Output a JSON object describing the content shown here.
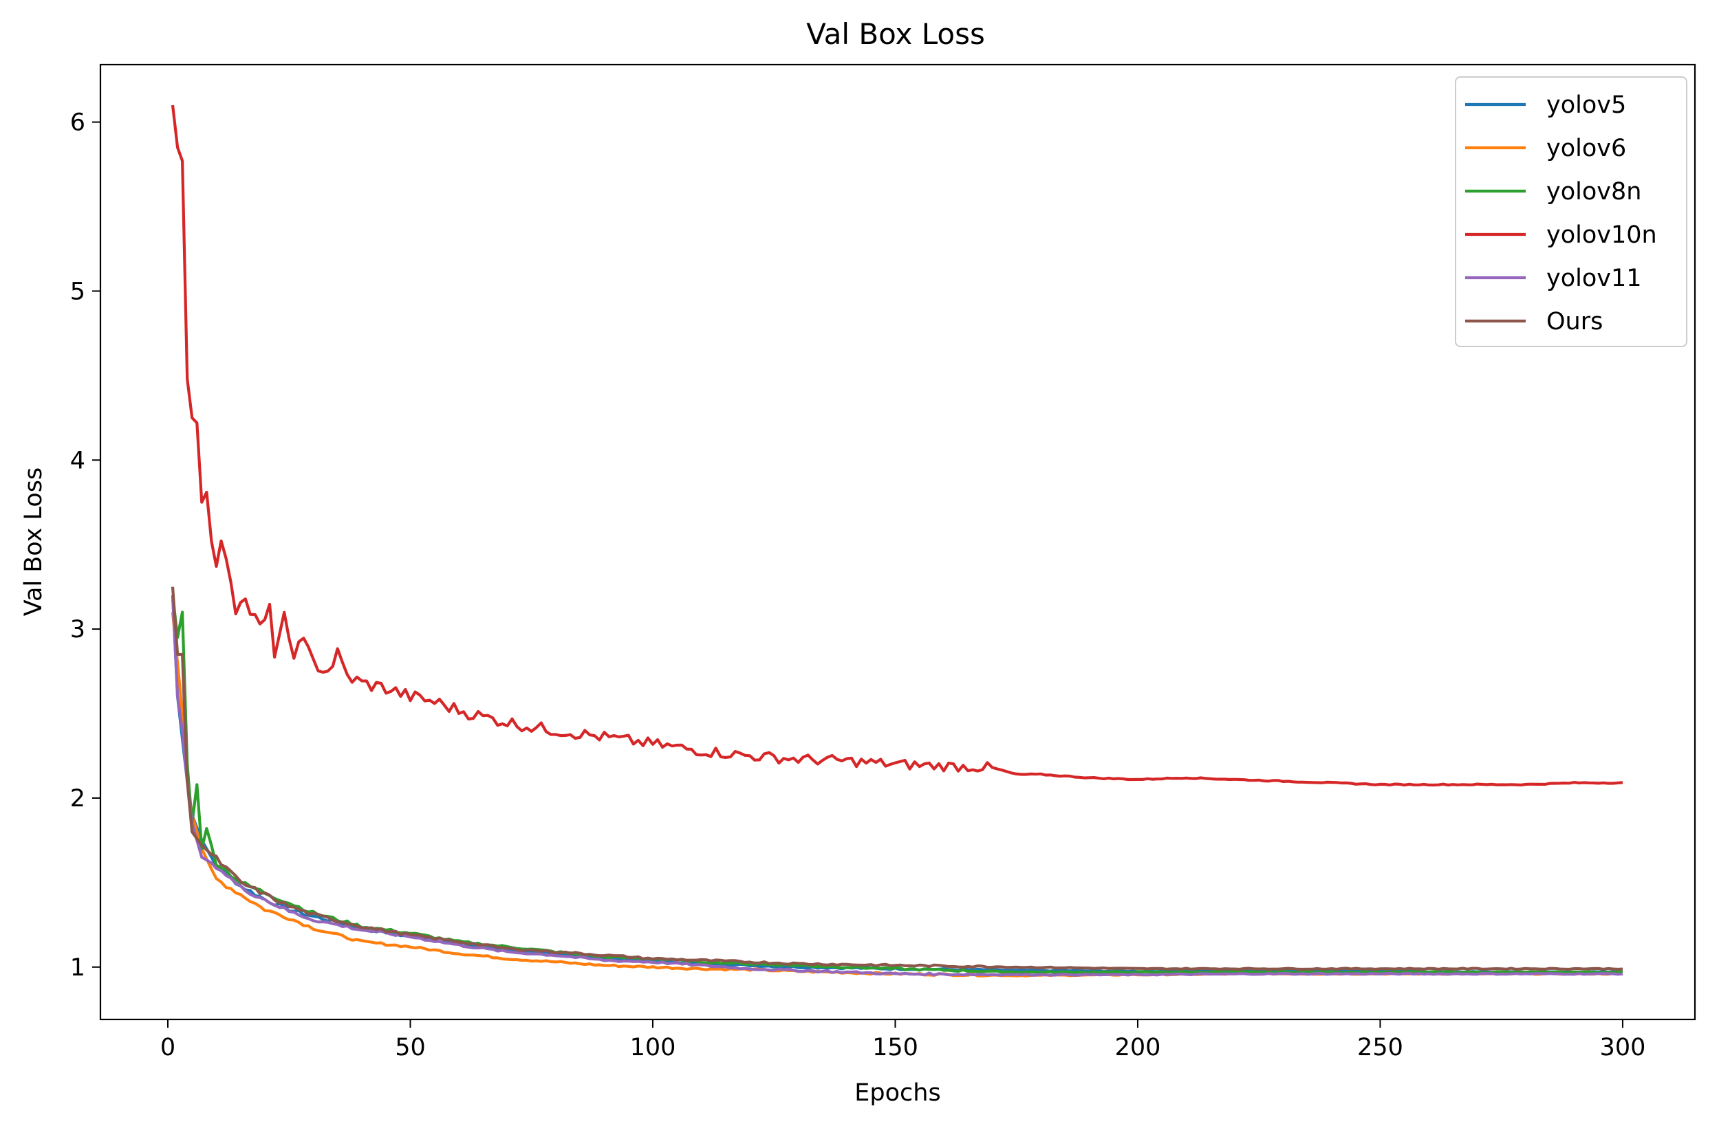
{
  "chart_data": {
    "type": "line",
    "title": "Val Box Loss",
    "xlabel": "Epochs",
    "ylabel": "Val Box Loss",
    "xlim": [
      -13.9,
      314.9
    ],
    "ylim": [
      0.69,
      6.34
    ],
    "xticks": [
      0,
      50,
      100,
      150,
      200,
      250,
      300
    ],
    "yticks": [
      1,
      2,
      3,
      4,
      5,
      6
    ],
    "grid": false,
    "legend_position": "top-right",
    "series": [
      {
        "name": "yolov5",
        "color": "#1f77b4",
        "points": [
          [
            1,
            3.2
          ],
          [
            2,
            2.6
          ],
          [
            3,
            2.35
          ],
          [
            4,
            2.1
          ],
          [
            5,
            1.9
          ],
          [
            7,
            1.75
          ],
          [
            10,
            1.6
          ],
          [
            15,
            1.48
          ],
          [
            20,
            1.4
          ],
          [
            25,
            1.34
          ],
          [
            30,
            1.3
          ],
          [
            40,
            1.23
          ],
          [
            50,
            1.18
          ],
          [
            60,
            1.14
          ],
          [
            70,
            1.1
          ],
          [
            80,
            1.08
          ],
          [
            90,
            1.05
          ],
          [
            100,
            1.04
          ],
          [
            110,
            1.02
          ],
          [
            120,
            1.01
          ],
          [
            130,
            1.0
          ],
          [
            150,
            0.99
          ],
          [
            175,
            0.98
          ],
          [
            200,
            0.975
          ],
          [
            225,
            0.98
          ],
          [
            250,
            0.975
          ],
          [
            275,
            0.97
          ],
          [
            300,
            0.97
          ]
        ]
      },
      {
        "name": "yolov6",
        "color": "#ff7f0e",
        "points": [
          [
            1,
            3.1
          ],
          [
            2,
            2.8
          ],
          [
            3,
            2.5
          ],
          [
            4,
            2.1
          ],
          [
            5,
            1.9
          ],
          [
            7,
            1.7
          ],
          [
            10,
            1.52
          ],
          [
            15,
            1.43
          ],
          [
            20,
            1.34
          ],
          [
            25,
            1.29
          ],
          [
            30,
            1.23
          ],
          [
            40,
            1.15
          ],
          [
            50,
            1.12
          ],
          [
            60,
            1.08
          ],
          [
            70,
            1.05
          ],
          [
            80,
            1.03
          ],
          [
            90,
            1.01
          ],
          [
            100,
            1.0
          ],
          [
            110,
            0.99
          ],
          [
            120,
            0.985
          ],
          [
            130,
            0.975
          ],
          [
            150,
            0.96
          ],
          [
            175,
            0.95
          ],
          [
            200,
            0.955
          ],
          [
            225,
            0.96
          ],
          [
            250,
            0.96
          ],
          [
            275,
            0.96
          ],
          [
            300,
            0.96
          ]
        ]
      },
      {
        "name": "yolov8n",
        "color": "#2ca02c",
        "points": [
          [
            1,
            3.2
          ],
          [
            2,
            2.95
          ],
          [
            3,
            3.1
          ],
          [
            4,
            2.2
          ],
          [
            5,
            1.85
          ],
          [
            6,
            2.08
          ],
          [
            7,
            1.7
          ],
          [
            8,
            1.82
          ],
          [
            10,
            1.62
          ],
          [
            15,
            1.5
          ],
          [
            20,
            1.44
          ],
          [
            25,
            1.38
          ],
          [
            30,
            1.32
          ],
          [
            40,
            1.24
          ],
          [
            50,
            1.2
          ],
          [
            60,
            1.15
          ],
          [
            70,
            1.12
          ],
          [
            80,
            1.09
          ],
          [
            90,
            1.06
          ],
          [
            100,
            1.05
          ],
          [
            110,
            1.03
          ],
          [
            120,
            1.02
          ],
          [
            130,
            1.01
          ],
          [
            150,
            0.99
          ],
          [
            175,
            0.97
          ],
          [
            200,
            0.97
          ],
          [
            225,
            0.97
          ],
          [
            250,
            0.97
          ],
          [
            275,
            0.97
          ],
          [
            300,
            0.97
          ]
        ]
      },
      {
        "name": "yolov10n",
        "color": "#d62728",
        "points": [
          [
            1,
            6.1
          ],
          [
            2,
            5.85
          ],
          [
            3,
            5.77
          ],
          [
            4,
            4.48
          ],
          [
            5,
            4.25
          ],
          [
            6,
            4.22
          ],
          [
            7,
            3.75
          ],
          [
            8,
            3.81
          ],
          [
            9,
            3.52
          ],
          [
            10,
            3.4
          ],
          [
            11,
            3.47
          ],
          [
            12,
            3.46
          ],
          [
            13,
            3.3
          ],
          [
            14,
            3.12
          ],
          [
            15,
            3.21
          ],
          [
            17,
            3.11
          ],
          [
            19,
            3.0
          ],
          [
            21,
            3.1
          ],
          [
            22,
            2.87
          ],
          [
            24,
            3.06
          ],
          [
            25,
            2.9
          ],
          [
            26,
            2.83
          ],
          [
            27,
            2.97
          ],
          [
            30,
            2.8
          ],
          [
            33,
            2.75
          ],
          [
            35,
            2.85
          ],
          [
            37,
            2.72
          ],
          [
            40,
            2.68
          ],
          [
            45,
            2.65
          ],
          [
            50,
            2.6
          ],
          [
            55,
            2.57
          ],
          [
            60,
            2.52
          ],
          [
            65,
            2.48
          ],
          [
            70,
            2.45
          ],
          [
            75,
            2.42
          ],
          [
            80,
            2.4
          ],
          [
            90,
            2.36
          ],
          [
            100,
            2.32
          ],
          [
            110,
            2.28
          ],
          [
            120,
            2.25
          ],
          [
            130,
            2.23
          ],
          [
            140,
            2.22
          ],
          [
            150,
            2.2
          ],
          [
            160,
            2.19
          ],
          [
            170,
            2.18
          ],
          [
            175,
            2.14
          ],
          [
            180,
            2.14
          ],
          [
            190,
            2.12
          ],
          [
            200,
            2.11
          ],
          [
            210,
            2.12
          ],
          [
            220,
            2.11
          ],
          [
            230,
            2.1
          ],
          [
            240,
            2.09
          ],
          [
            250,
            2.08
          ],
          [
            260,
            2.08
          ],
          [
            270,
            2.08
          ],
          [
            280,
            2.08
          ],
          [
            290,
            2.09
          ],
          [
            300,
            2.09
          ]
        ]
      },
      {
        "name": "yolov11",
        "color": "#9467bd",
        "points": [
          [
            1,
            3.2
          ],
          [
            2,
            2.6
          ],
          [
            3,
            2.4
          ],
          [
            4,
            2.1
          ],
          [
            5,
            1.85
          ],
          [
            7,
            1.65
          ],
          [
            10,
            1.6
          ],
          [
            15,
            1.47
          ],
          [
            20,
            1.4
          ],
          [
            25,
            1.33
          ],
          [
            30,
            1.28
          ],
          [
            40,
            1.22
          ],
          [
            50,
            1.18
          ],
          [
            60,
            1.13
          ],
          [
            70,
            1.09
          ],
          [
            80,
            1.07
          ],
          [
            90,
            1.04
          ],
          [
            100,
            1.03
          ],
          [
            110,
            1.01
          ],
          [
            120,
            0.99
          ],
          [
            130,
            0.98
          ],
          [
            150,
            0.96
          ],
          [
            175,
            0.955
          ],
          [
            200,
            0.955
          ],
          [
            225,
            0.96
          ],
          [
            250,
            0.96
          ],
          [
            275,
            0.96
          ],
          [
            300,
            0.96
          ]
        ]
      },
      {
        "name": "Ours",
        "color": "#8c564b",
        "points": [
          [
            1,
            3.25
          ],
          [
            2,
            2.85
          ],
          [
            3,
            2.85
          ],
          [
            4,
            2.1
          ],
          [
            5,
            1.8
          ],
          [
            7,
            1.72
          ],
          [
            10,
            1.64
          ],
          [
            15,
            1.5
          ],
          [
            20,
            1.43
          ],
          [
            25,
            1.36
          ],
          [
            30,
            1.31
          ],
          [
            40,
            1.24
          ],
          [
            50,
            1.19
          ],
          [
            60,
            1.15
          ],
          [
            70,
            1.11
          ],
          [
            80,
            1.09
          ],
          [
            90,
            1.07
          ],
          [
            100,
            1.05
          ],
          [
            110,
            1.04
          ],
          [
            120,
            1.03
          ],
          [
            130,
            1.02
          ],
          [
            150,
            1.01
          ],
          [
            175,
            1.0
          ],
          [
            200,
            0.99
          ],
          [
            225,
            0.99
          ],
          [
            250,
            0.99
          ],
          [
            275,
            0.99
          ],
          [
            300,
            0.99
          ]
        ]
      }
    ]
  }
}
